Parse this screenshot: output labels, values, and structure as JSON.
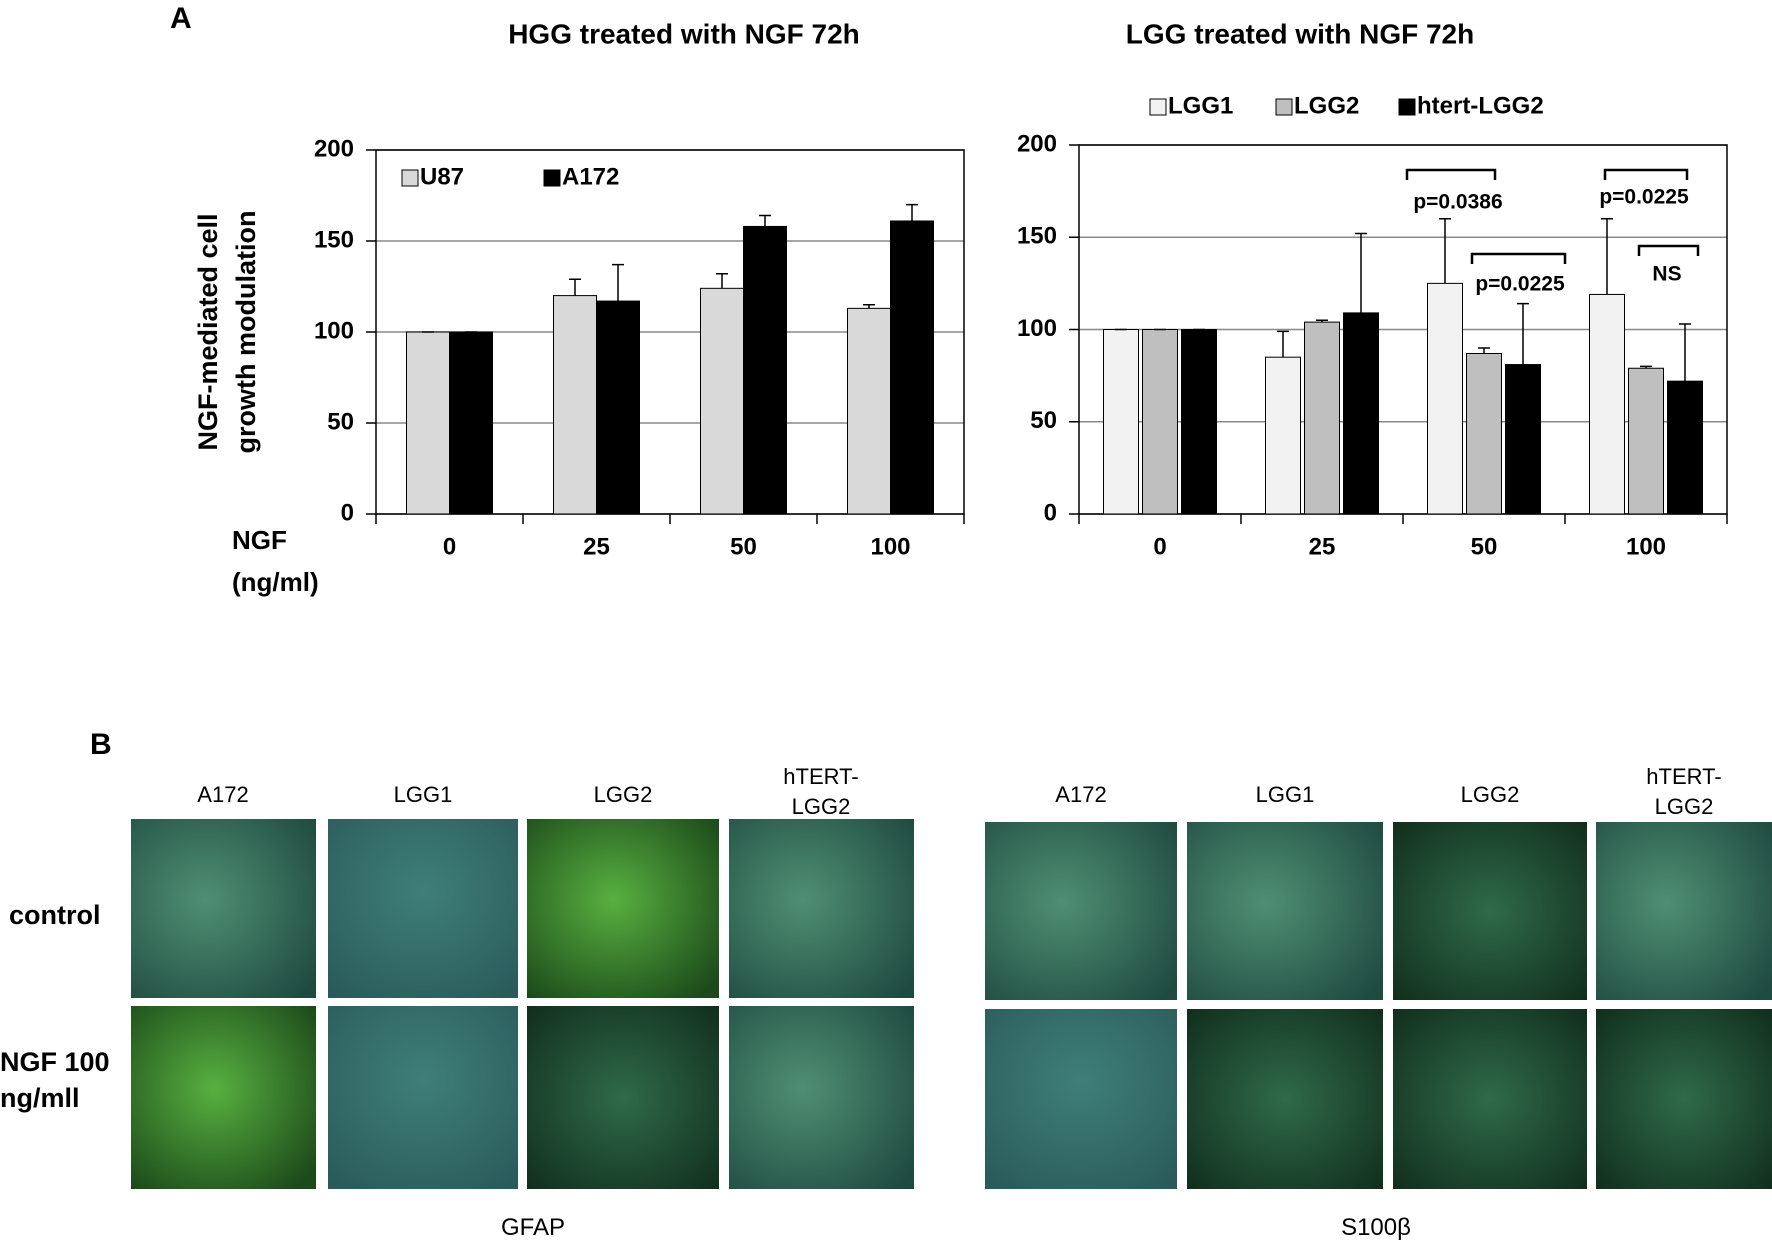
{
  "panel_labels": [
    "A",
    "B"
  ],
  "chart_data": [
    {
      "type": "bar",
      "title": "HGG treated with NGF 72h",
      "ylabel": [
        "NGF-mediated cell",
        "growth modulation"
      ],
      "xlabel": [
        "NGF",
        "(ng/ml)"
      ],
      "categories": [
        "0",
        "25",
        "50",
        "100"
      ],
      "series": [
        {
          "name": "U87",
          "color": "#d9d9d9",
          "values": [
            100,
            120,
            124,
            113
          ],
          "errors": [
            0,
            9,
            8,
            2
          ]
        },
        {
          "name": "A172",
          "color": "#000000",
          "values": [
            100,
            117,
            158,
            161
          ],
          "errors": [
            0,
            20,
            6,
            9
          ]
        }
      ],
      "ylim": [
        0,
        200
      ],
      "yticks": [
        0,
        50,
        100,
        150,
        200
      ],
      "grid": true
    },
    {
      "type": "bar",
      "title": "LGG treated with NGF 72h",
      "categories": [
        "0",
        "25",
        "50",
        "100"
      ],
      "series": [
        {
          "name": "LGG1",
          "color": "#f2f2f2",
          "values": [
            100,
            85,
            125,
            119
          ],
          "errors": [
            0,
            14,
            35,
            41
          ]
        },
        {
          "name": "LGG2",
          "color": "#bfbfbf",
          "values": [
            100,
            104,
            87,
            79
          ],
          "errors": [
            0,
            1,
            3,
            1
          ]
        },
        {
          "name": "htert-LGG2",
          "color": "#000000",
          "values": [
            100,
            109,
            81,
            72
          ],
          "errors": [
            0,
            43,
            33,
            31
          ]
        }
      ],
      "annotations": [
        "p=0.0386",
        "p=0.0225",
        "p=0.0225",
        "NS"
      ],
      "ylim": [
        0,
        200
      ],
      "yticks": [
        0,
        50,
        100,
        150,
        200
      ],
      "grid": true
    }
  ],
  "images": {
    "rows": [
      "control",
      "NGF 100 ng/mll"
    ],
    "stains": [
      {
        "name": "GFAP",
        "columns": [
          "A172",
          "LGG1",
          "LGG2",
          "hTERT-LGG2"
        ]
      },
      {
        "name": "S100β",
        "columns": [
          "A172",
          "LGG1",
          "LGG2",
          "hTERT-LGG2"
        ]
      }
    ]
  }
}
